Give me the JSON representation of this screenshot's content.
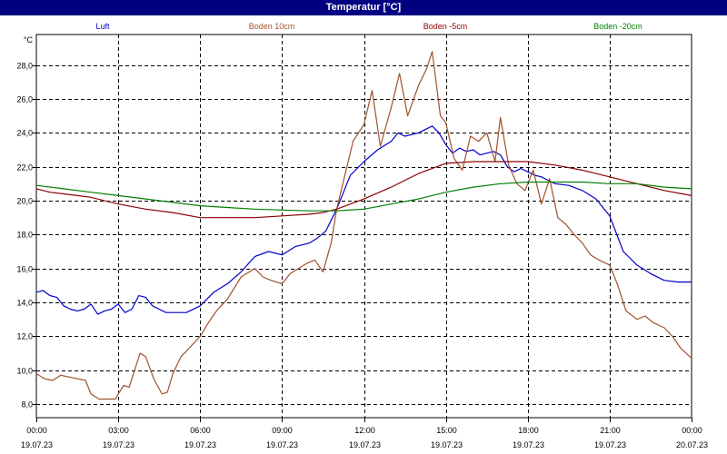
{
  "window": {
    "title": "Temperatur [°C]"
  },
  "chart_data": {
    "type": "line",
    "title": "Temperatur [°C]",
    "ylabel": "°C",
    "ylim": [
      7.2,
      29.8
    ],
    "xlim": [
      0,
      24
    ],
    "grid": true,
    "legend_position": "top",
    "y_ticks": [
      "28,0",
      "26,0",
      "24,0",
      "22,0",
      "20,0",
      "18,0",
      "16,0",
      "14,0",
      "12,0",
      "10,0",
      "8,0"
    ],
    "y_tick_values": [
      28,
      26,
      24,
      22,
      20,
      18,
      16,
      14,
      12,
      10,
      8
    ],
    "x_ticks": [
      {
        "hour": 0,
        "time": "00:00",
        "date": "19.07.23"
      },
      {
        "hour": 3,
        "time": "03:00",
        "date": "19.07.23"
      },
      {
        "hour": 6,
        "time": "06:00",
        "date": "19.07.23"
      },
      {
        "hour": 9,
        "time": "09:00",
        "date": "19.07.23"
      },
      {
        "hour": 12,
        "time": "12:00",
        "date": "19.07.23"
      },
      {
        "hour": 15,
        "time": "15:00",
        "date": "19.07.23"
      },
      {
        "hour": 18,
        "time": "18:00",
        "date": "19.07.23"
      },
      {
        "hour": 21,
        "time": "21:00",
        "date": "19.07.23"
      },
      {
        "hour": 24,
        "time": "00:00",
        "date": "20.07.23"
      }
    ],
    "series": [
      {
        "name": "Luft",
        "color": "#0000cc",
        "points": [
          [
            0,
            14.6
          ],
          [
            0.25,
            14.7
          ],
          [
            0.5,
            14.4
          ],
          [
            0.75,
            14.3
          ],
          [
            1.0,
            13.8
          ],
          [
            1.25,
            13.6
          ],
          [
            1.5,
            13.5
          ],
          [
            1.75,
            13.6
          ],
          [
            2.0,
            13.9
          ],
          [
            2.25,
            13.3
          ],
          [
            2.5,
            13.5
          ],
          [
            2.75,
            13.6
          ],
          [
            3.0,
            13.9
          ],
          [
            3.25,
            13.4
          ],
          [
            3.5,
            13.6
          ],
          [
            3.75,
            14.4
          ],
          [
            4.0,
            14.3
          ],
          [
            4.25,
            13.8
          ],
          [
            4.5,
            13.6
          ],
          [
            4.75,
            13.4
          ],
          [
            5.0,
            13.4
          ],
          [
            5.5,
            13.4
          ],
          [
            6.0,
            13.8
          ],
          [
            6.5,
            14.6
          ],
          [
            7.0,
            15.1
          ],
          [
            7.5,
            15.8
          ],
          [
            8.0,
            16.7
          ],
          [
            8.5,
            17.0
          ],
          [
            9.0,
            16.8
          ],
          [
            9.5,
            17.3
          ],
          [
            10.0,
            17.5
          ],
          [
            10.3,
            17.8
          ],
          [
            10.6,
            18.2
          ],
          [
            11.0,
            19.5
          ],
          [
            11.5,
            21.5
          ],
          [
            12.0,
            22.3
          ],
          [
            12.5,
            23.0
          ],
          [
            13.0,
            23.5
          ],
          [
            13.25,
            24.0
          ],
          [
            13.5,
            23.8
          ],
          [
            14.0,
            24.0
          ],
          [
            14.25,
            24.2
          ],
          [
            14.5,
            24.4
          ],
          [
            14.75,
            24.0
          ],
          [
            15.0,
            23.3
          ],
          [
            15.25,
            22.8
          ],
          [
            15.5,
            23.1
          ],
          [
            15.75,
            22.9
          ],
          [
            16.0,
            23.0
          ],
          [
            16.25,
            22.7
          ],
          [
            16.5,
            22.8
          ],
          [
            16.75,
            22.9
          ],
          [
            17.0,
            22.7
          ],
          [
            17.25,
            22.0
          ],
          [
            17.5,
            21.7
          ],
          [
            17.75,
            21.9
          ],
          [
            18.0,
            21.7
          ],
          [
            18.25,
            21.5
          ],
          [
            18.5,
            21.4
          ],
          [
            18.75,
            21.2
          ],
          [
            19.0,
            21.0
          ],
          [
            19.5,
            20.9
          ],
          [
            20.0,
            20.6
          ],
          [
            20.5,
            20.1
          ],
          [
            21.0,
            19.1
          ],
          [
            21.5,
            17.0
          ],
          [
            22.0,
            16.2
          ],
          [
            22.5,
            15.7
          ],
          [
            23.0,
            15.3
          ],
          [
            23.5,
            15.2
          ],
          [
            24.0,
            15.2
          ]
        ]
      },
      {
        "name": "Boden 10cm",
        "color": "#a0522d",
        "points": [
          [
            0,
            9.8
          ],
          [
            0.3,
            9.5
          ],
          [
            0.6,
            9.4
          ],
          [
            0.9,
            9.7
          ],
          [
            1.2,
            9.6
          ],
          [
            1.5,
            9.5
          ],
          [
            1.8,
            9.4
          ],
          [
            2.0,
            8.6
          ],
          [
            2.3,
            8.3
          ],
          [
            2.6,
            8.3
          ],
          [
            2.9,
            8.3
          ],
          [
            3.0,
            8.6
          ],
          [
            3.2,
            9.1
          ],
          [
            3.4,
            9.0
          ],
          [
            3.6,
            10.0
          ],
          [
            3.8,
            11.0
          ],
          [
            4.0,
            10.8
          ],
          [
            4.3,
            9.5
          ],
          [
            4.6,
            8.6
          ],
          [
            4.8,
            8.7
          ],
          [
            5.0,
            9.8
          ],
          [
            5.3,
            10.8
          ],
          [
            5.6,
            11.3
          ],
          [
            6.0,
            12.0
          ],
          [
            6.3,
            12.8
          ],
          [
            6.6,
            13.5
          ],
          [
            7.0,
            14.2
          ],
          [
            7.5,
            15.5
          ],
          [
            8.0,
            16.0
          ],
          [
            8.3,
            15.5
          ],
          [
            8.6,
            15.3
          ],
          [
            9.0,
            15.1
          ],
          [
            9.3,
            15.7
          ],
          [
            9.6,
            16.0
          ],
          [
            9.9,
            16.3
          ],
          [
            10.2,
            16.5
          ],
          [
            10.5,
            15.8
          ],
          [
            10.8,
            17.5
          ],
          [
            11.0,
            19.5
          ],
          [
            11.3,
            21.5
          ],
          [
            11.6,
            23.5
          ],
          [
            12.0,
            24.5
          ],
          [
            12.3,
            26.5
          ],
          [
            12.6,
            23.2
          ],
          [
            13.0,
            25.5
          ],
          [
            13.3,
            27.5
          ],
          [
            13.6,
            25.0
          ],
          [
            14.0,
            26.8
          ],
          [
            14.3,
            27.8
          ],
          [
            14.5,
            28.8
          ],
          [
            14.8,
            25.0
          ],
          [
            15.0,
            24.6
          ],
          [
            15.3,
            22.5
          ],
          [
            15.6,
            21.8
          ],
          [
            15.9,
            23.8
          ],
          [
            16.2,
            23.5
          ],
          [
            16.5,
            24.0
          ],
          [
            16.8,
            22.3
          ],
          [
            17.0,
            24.9
          ],
          [
            17.3,
            22.1
          ],
          [
            17.6,
            21.0
          ],
          [
            17.9,
            20.6
          ],
          [
            18.2,
            21.8
          ],
          [
            18.5,
            19.8
          ],
          [
            18.8,
            21.3
          ],
          [
            19.1,
            19.0
          ],
          [
            19.4,
            18.6
          ],
          [
            19.7,
            18.0
          ],
          [
            20.0,
            17.5
          ],
          [
            20.3,
            16.8
          ],
          [
            20.6,
            16.5
          ],
          [
            21.0,
            16.2
          ],
          [
            21.3,
            15.0
          ],
          [
            21.6,
            13.5
          ],
          [
            22.0,
            13.0
          ],
          [
            22.3,
            13.2
          ],
          [
            22.6,
            12.8
          ],
          [
            23.0,
            12.5
          ],
          [
            23.3,
            12.0
          ],
          [
            23.6,
            11.3
          ],
          [
            24.0,
            10.7
          ]
        ]
      },
      {
        "name": "Boden -5cm",
        "color": "#8b0000",
        "points": [
          [
            0,
            20.7
          ],
          [
            0.5,
            20.5
          ],
          [
            1.0,
            20.4
          ],
          [
            1.5,
            20.3
          ],
          [
            2.0,
            20.2
          ],
          [
            3.0,
            19.8
          ],
          [
            4.0,
            19.5
          ],
          [
            5.0,
            19.3
          ],
          [
            6.0,
            19.0
          ],
          [
            7.0,
            19.0
          ],
          [
            8.0,
            19.0
          ],
          [
            9.0,
            19.1
          ],
          [
            10.0,
            19.2
          ],
          [
            10.5,
            19.3
          ],
          [
            11.0,
            19.5
          ],
          [
            12.0,
            20.1
          ],
          [
            13.0,
            20.8
          ],
          [
            14.0,
            21.6
          ],
          [
            15.0,
            22.2
          ],
          [
            16.0,
            22.3
          ],
          [
            17.0,
            22.3
          ],
          [
            18.0,
            22.3
          ],
          [
            19.0,
            22.1
          ],
          [
            20.0,
            21.8
          ],
          [
            21.0,
            21.4
          ],
          [
            22.0,
            21.0
          ],
          [
            23.0,
            20.6
          ],
          [
            24.0,
            20.3
          ]
        ]
      },
      {
        "name": "Boden -20cm",
        "color": "#008000",
        "points": [
          [
            0,
            20.9
          ],
          [
            1.0,
            20.7
          ],
          [
            2.0,
            20.5
          ],
          [
            3.0,
            20.3
          ],
          [
            4.0,
            20.1
          ],
          [
            5.0,
            19.9
          ],
          [
            6.0,
            19.7
          ],
          [
            7.0,
            19.6
          ],
          [
            8.0,
            19.5
          ],
          [
            9.0,
            19.45
          ],
          [
            10.0,
            19.4
          ],
          [
            11.0,
            19.4
          ],
          [
            12.0,
            19.5
          ],
          [
            13.0,
            19.8
          ],
          [
            14.0,
            20.1
          ],
          [
            15.0,
            20.5
          ],
          [
            16.0,
            20.8
          ],
          [
            17.0,
            21.0
          ],
          [
            18.0,
            21.1
          ],
          [
            19.0,
            21.1
          ],
          [
            20.0,
            21.1
          ],
          [
            21.0,
            21.0
          ],
          [
            22.0,
            21.0
          ],
          [
            23.0,
            20.8
          ],
          [
            24.0,
            20.7
          ]
        ]
      }
    ]
  }
}
